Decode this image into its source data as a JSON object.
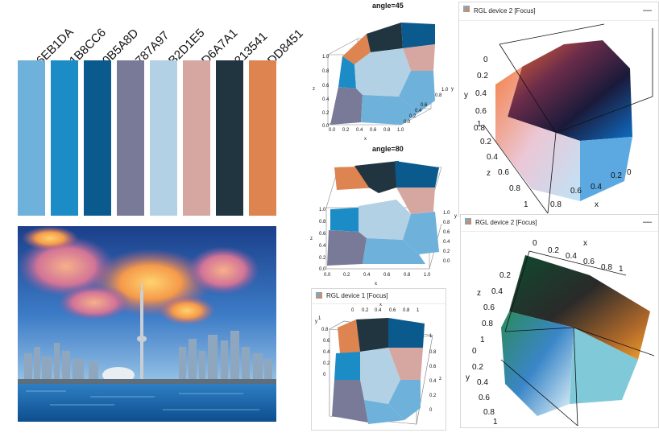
{
  "palette": {
    "swatches": [
      {
        "label": "#6EB1DA",
        "color": "#6EB1DA"
      },
      {
        "label": "#1B8CC6",
        "color": "#1B8CC6"
      },
      {
        "label": "#0B5A8D",
        "color": "#0B5A8D"
      },
      {
        "label": "#787A97",
        "color": "#787A97"
      },
      {
        "label": "#B2D1E5",
        "color": "#B2D1E5"
      },
      {
        "label": "#D6A7A1",
        "color": "#D6A7A1"
      },
      {
        "label": "#213541",
        "color": "#213541"
      },
      {
        "label": "#DD8451",
        "color": "#DD8451"
      }
    ]
  },
  "plots": {
    "top": {
      "title": "angle=45",
      "x_label": "x",
      "y_label": "y",
      "z_label": "z",
      "z_ticks": [
        "0.0",
        "0.2",
        "0.4",
        "0.6",
        "0.8",
        "1.0"
      ],
      "x_ticks": [
        "0.0",
        "0.2",
        "0.4",
        "0.6",
        "0.8",
        "1.0"
      ],
      "y_ticks": [
        "0.0",
        "0.2",
        "0.4",
        "0.6",
        "0.8",
        "1.0"
      ]
    },
    "middle": {
      "title": "angle=80",
      "x_label": "x",
      "y_label": "y",
      "z_label": "z",
      "z_ticks": [
        "0.0",
        "0.2",
        "0.4",
        "0.6",
        "0.8",
        "1.0"
      ],
      "x_ticks": [
        "0.0",
        "0.2",
        "0.4",
        "0.6",
        "0.8",
        "1.0"
      ],
      "y_ticks": [
        "0.0",
        "0.2",
        "0.4",
        "0.6",
        "0.8",
        "1.0"
      ]
    },
    "bottom": {
      "window_title": "RGL device 1 [Focus]",
      "x_label": "x",
      "y_label": "y",
      "z_label": "z",
      "x_ticks": [
        "0",
        "0.2",
        "0.4",
        "0.6",
        "0.8",
        "1"
      ],
      "y_ticks": [
        "0",
        "0.2",
        "0.4",
        "0.6",
        "0.8",
        "1"
      ],
      "z_ticks": [
        "0",
        "0.2",
        "0.4",
        "0.6",
        "0.8",
        "1"
      ]
    }
  },
  "rgl_windows": {
    "top_right": {
      "title": "RGL device 2 [Focus]",
      "minimize": "—",
      "y_label": "y",
      "z_label": "z",
      "x_label": "x",
      "y_ticks": [
        "0",
        "0.2",
        "0.4",
        "0.6",
        "0.8",
        "1"
      ],
      "z_ticks": [
        "0",
        "0.2",
        "0.4",
        "0.6",
        "0.8",
        "1"
      ],
      "x_ticks": [
        "1",
        "0.8",
        "0.6",
        "0.4",
        "0.2",
        "0"
      ]
    },
    "bottom_right": {
      "title": "RGL device 2 [Focus]",
      "minimize": "—",
      "x_label": "x",
      "z_label": "z",
      "y_label": "y",
      "x_ticks": [
        "0",
        "0.2",
        "0.4",
        "0.6",
        "0.8",
        "1"
      ],
      "z_ticks": [
        "0.2",
        "0.4",
        "0.6",
        "0.8",
        "1"
      ],
      "y_ticks": [
        "0",
        "0.2",
        "0.4",
        "0.6",
        "0.8",
        "1"
      ]
    }
  }
}
